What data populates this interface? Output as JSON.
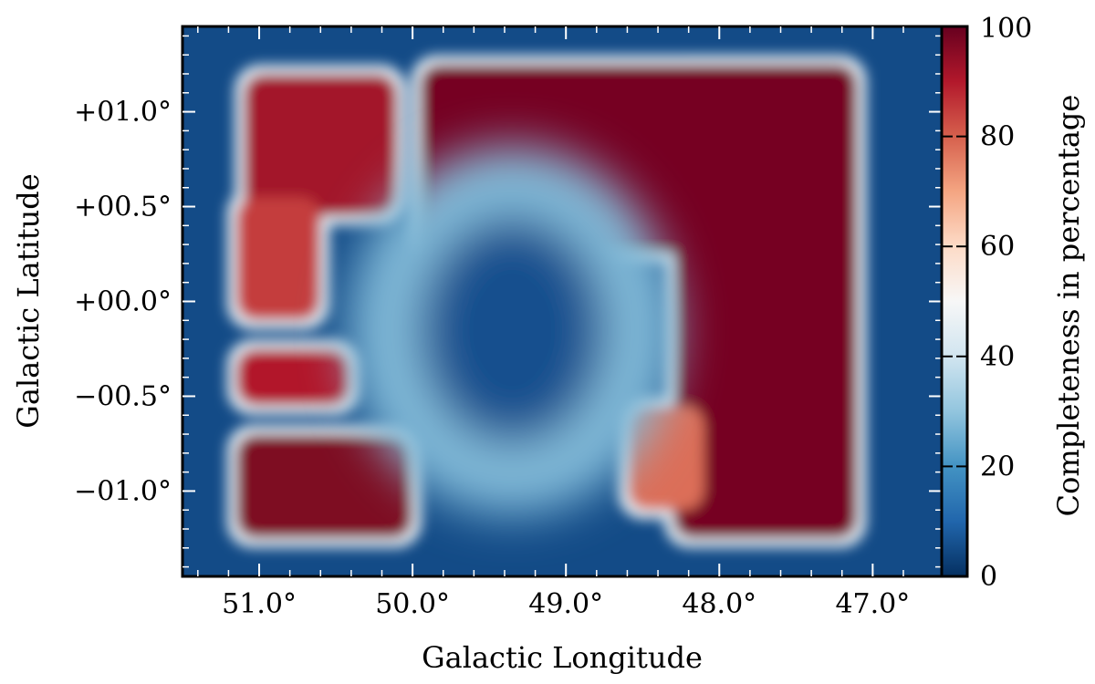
{
  "chart_data": {
    "type": "heatmap",
    "title": "",
    "xlabel": "Galactic Longitude",
    "ylabel": "Galactic Latitude",
    "xlim": [
      51.5,
      46.55
    ],
    "ylim": [
      -1.45,
      1.45
    ],
    "x_ticks": [
      {
        "value": 51.0,
        "label": "51.0°"
      },
      {
        "value": 50.0,
        "label": "50.0°"
      },
      {
        "value": 49.0,
        "label": "49.0°"
      },
      {
        "value": 48.0,
        "label": "48.0°"
      },
      {
        "value": 47.0,
        "label": "47.0°"
      }
    ],
    "y_ticks": [
      {
        "value": 1.0,
        "label": "+01.0°"
      },
      {
        "value": 0.5,
        "label": "+00.5°"
      },
      {
        "value": 0.0,
        "label": "+00.0°"
      },
      {
        "value": -0.5,
        "label": "−00.5°"
      },
      {
        "value": -1.0,
        "label": "−01.0°"
      }
    ],
    "colorbar": {
      "label": "Completeness in percentage",
      "range": [
        0,
        100
      ],
      "ticks": [
        {
          "value": 0,
          "label": "0"
        },
        {
          "value": 20,
          "label": "20"
        },
        {
          "value": 40,
          "label": "40"
        },
        {
          "value": 60,
          "label": "60"
        },
        {
          "value": 80,
          "label": "80"
        },
        {
          "value": 100,
          "label": "100"
        }
      ],
      "colors": [
        "#053061",
        "#2166ac",
        "#4393c3",
        "#92c5de",
        "#d1e5f0",
        "#f7f7f7",
        "#fddbc7",
        "#f4a582",
        "#d6604d",
        "#b2182b",
        "#67001f"
      ]
    },
    "grid": false,
    "regions": [
      {
        "name": "upper-right block",
        "lon_range": [
          47.15,
          49.95
        ],
        "lat_range": [
          0.25,
          1.25
        ],
        "completeness": 98
      },
      {
        "name": "right column",
        "lon_range": [
          47.1,
          48.3
        ],
        "lat_range": [
          -1.25,
          1.25
        ],
        "completeness": 98
      },
      {
        "name": "upper-left block",
        "lon_range": [
          50.1,
          51.1
        ],
        "lat_range": [
          0.45,
          1.2
        ],
        "completeness": 92
      },
      {
        "name": "left edge",
        "lon_range": [
          50.6,
          51.15
        ],
        "lat_range": [
          -0.1,
          0.55
        ],
        "completeness": 85
      },
      {
        "name": "mid-left band",
        "lon_range": [
          50.4,
          51.15
        ],
        "lat_range": [
          -0.55,
          -0.25
        ],
        "completeness": 90
      },
      {
        "name": "lower-left block",
        "lon_range": [
          50.0,
          51.15
        ],
        "lat_range": [
          -1.25,
          -0.7
        ],
        "completeness": 97
      },
      {
        "name": "lower-middle patch",
        "lon_range": [
          48.1,
          48.6
        ],
        "lat_range": [
          -1.1,
          -0.55
        ],
        "completeness": 78
      },
      {
        "name": "central hole",
        "center": [
          49.35,
          -0.15
        ],
        "radius_deg": 0.85,
        "completeness": 6
      }
    ],
    "background_completeness": 5
  }
}
